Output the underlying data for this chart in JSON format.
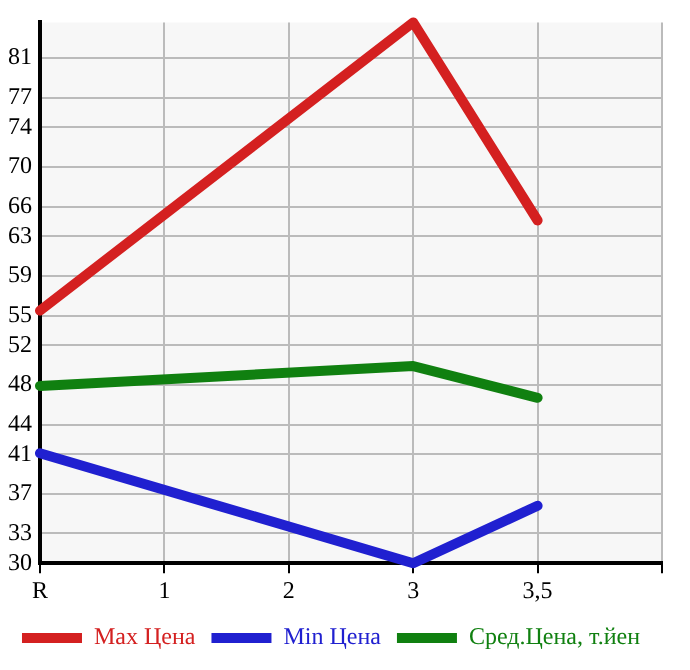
{
  "chart_data": {
    "type": "line",
    "categories": [
      "R",
      "1",
      "2",
      "3",
      "3,5",
      null
    ],
    "series": [
      {
        "name": "Max Цена",
        "color": "#d42020",
        "values": [
          55.5,
          null,
          null,
          84.6,
          64.6,
          null
        ]
      },
      {
        "name": "Min Цена",
        "color": "#2020d0",
        "values": [
          41.1,
          null,
          null,
          30,
          35.8,
          null
        ]
      },
      {
        "name": "Сред.Цена, т.йен",
        "color": "#108010",
        "values": [
          47.9,
          null,
          null,
          49.9,
          46.7,
          null
        ]
      }
    ],
    "ylim": [
      30,
      84.6
    ],
    "yticks": [
      30,
      33,
      37,
      41,
      44,
      48,
      52,
      55,
      59,
      63,
      66,
      70,
      74,
      77,
      81
    ],
    "grid": true,
    "legend": "bottom",
    "marker": "none",
    "line_style": "solid"
  }
}
